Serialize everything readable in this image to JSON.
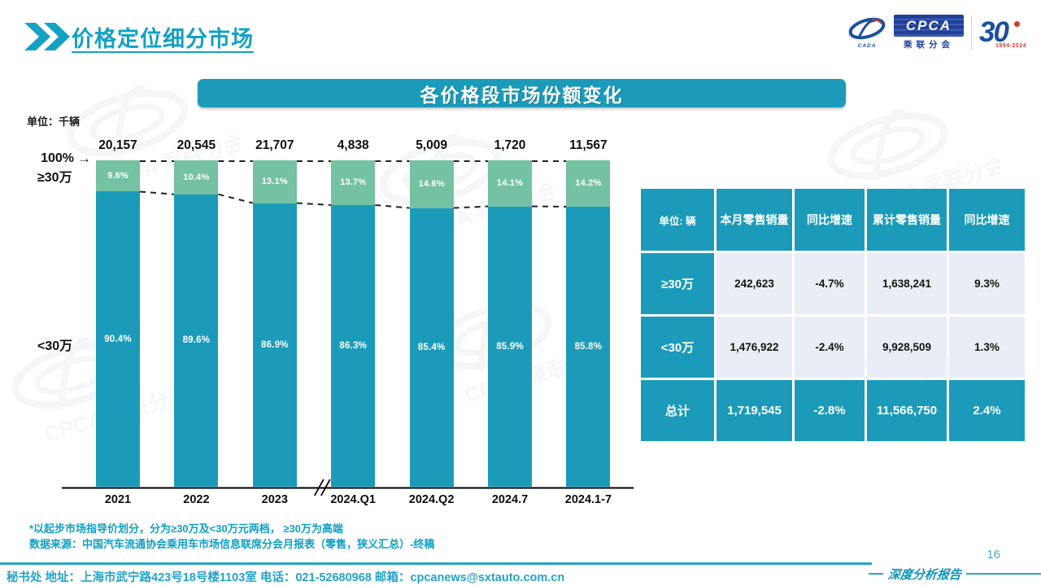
{
  "header": {
    "title": "价格定位细分市场"
  },
  "logo": {
    "cada": "CADA",
    "cpca": "CPCA",
    "cpca_sub": "乘联分会",
    "anniversary": "30",
    "anniversary_years": "1994-2024"
  },
  "banner": {
    "title": "各价格段市场份额变化"
  },
  "chart": {
    "unit_label": "单位：千辆",
    "axis_top_label": "100%",
    "arrow_icon": "→",
    "segment_high_label": "≥30万",
    "segment_low_label": "<30万"
  },
  "chart_data": {
    "type": "bar",
    "stacked": true,
    "title": "各价格段市场份额变化",
    "unit": "千辆",
    "ylim": [
      0,
      100
    ],
    "grid": false,
    "axis_break_after": "2023",
    "categories": [
      "2021",
      "2022",
      "2023",
      "2024.Q1",
      "2024.Q2",
      "2024.7",
      "2024.1-7"
    ],
    "totals": [
      "20,157",
      "20,545",
      "21,707",
      "4,838",
      "5,009",
      "1,720",
      "11,567"
    ],
    "series": [
      {
        "name": "≥30万",
        "color": "#74c1a3",
        "values": [
          9.6,
          10.4,
          13.1,
          13.7,
          14.6,
          14.1,
          14.2
        ]
      },
      {
        "name": "<30万",
        "color": "#1b9bb9",
        "values": [
          90.4,
          89.6,
          86.9,
          86.3,
          85.4,
          85.9,
          85.8
        ]
      }
    ]
  },
  "table": {
    "headers": [
      "单位: 辆",
      "本月零售销量",
      "同比增速",
      "累计零售销量",
      "同比增速"
    ],
    "rows": [
      {
        "label": "≥30万",
        "cells": [
          "242,623",
          "-4.7%",
          "1,638,241",
          "9.3%"
        ],
        "total": false
      },
      {
        "label": "<30万",
        "cells": [
          "1,476,922",
          "-2.4%",
          "9,928,509",
          "1.3%"
        ],
        "total": false
      },
      {
        "label": "总计",
        "cells": [
          "1,719,545",
          "-2.8%",
          "11,566,750",
          "2.4%"
        ],
        "total": true
      }
    ]
  },
  "notes": {
    "line1": "*以起步市场指导价划分，分为≥30万及<30万元两档， ≥30万为高端",
    "line2": "数据来源：中国汽车流通协会乘用车市场信息联席分会月报表（零售，狭义汇总）-终稿"
  },
  "footer": {
    "text": "秘书处  地址：上海市武宁路423号18号楼1103室 电话：021-52680968  邮箱：cpcanews@sxtauto.com.cn",
    "report_label": "深度分析报告",
    "page_number": "16"
  },
  "watermark": {
    "text": "CPCA 乘联分会"
  }
}
